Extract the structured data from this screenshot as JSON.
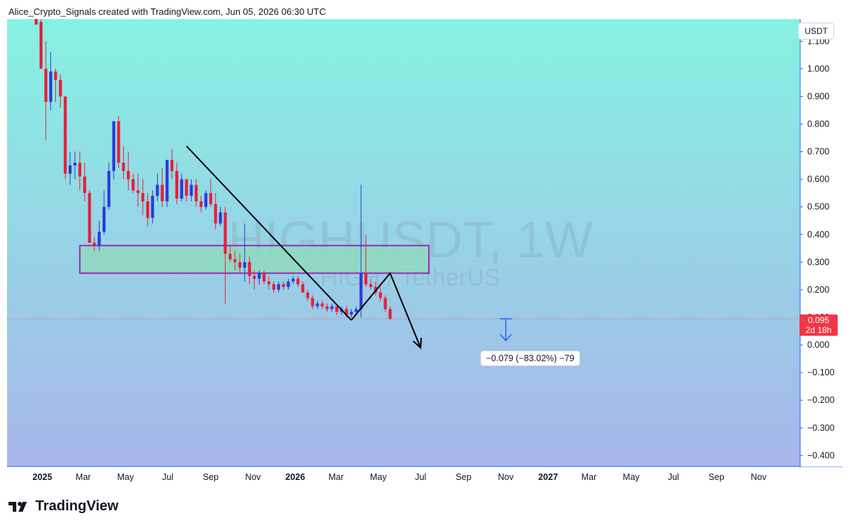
{
  "header": {
    "caption": "Alice_Crypto_Signals created with TradingView.com, Jun 05, 2026 06:30 UTC"
  },
  "footer": {
    "brand": "TradingView",
    "logo_icon": "tradingview-logo-icon"
  },
  "chart_data": {
    "type": "candlestick",
    "watermark": {
      "symbol": "HIGHUSDT, 1W",
      "name": "HIGH / TetherUS"
    },
    "unit": "USDT",
    "ylim": [
      -0.44,
      1.18
    ],
    "yticks": [
      "1.100",
      "1.000",
      "0.900",
      "0.800",
      "0.700",
      "0.600",
      "0.500",
      "0.400",
      "0.300",
      "0.200",
      "0.100",
      "0.000",
      "−0.100",
      "−0.200",
      "−0.300",
      "−0.400"
    ],
    "ytick_values": [
      1.1,
      1.0,
      0.9,
      0.8,
      0.7,
      0.6,
      0.5,
      0.4,
      0.3,
      0.2,
      0.1,
      0.0,
      -0.1,
      -0.2,
      -0.3,
      -0.4
    ],
    "x_range_days": [
      "2024-11-11",
      "2027-12-31"
    ],
    "xticks": [
      {
        "label": "2025",
        "date": "2025-01-01",
        "bold": true
      },
      {
        "label": "Mar",
        "date": "2025-03-01"
      },
      {
        "label": "May",
        "date": "2025-05-01"
      },
      {
        "label": "Jul",
        "date": "2025-07-01"
      },
      {
        "label": "Sep",
        "date": "2025-09-01"
      },
      {
        "label": "Nov",
        "date": "2025-11-01"
      },
      {
        "label": "2026",
        "date": "2026-01-01",
        "bold": true
      },
      {
        "label": "Mar",
        "date": "2026-03-01"
      },
      {
        "label": "May",
        "date": "2026-05-01"
      },
      {
        "label": "Jul",
        "date": "2026-07-01"
      },
      {
        "label": "Sep",
        "date": "2026-09-01"
      },
      {
        "label": "Nov",
        "date": "2026-11-01"
      },
      {
        "label": "2027",
        "date": "2027-01-01",
        "bold": true
      },
      {
        "label": "Mar",
        "date": "2027-03-01"
      },
      {
        "label": "May",
        "date": "2027-05-01"
      },
      {
        "label": "Jul",
        "date": "2027-07-01"
      },
      {
        "label": "Sep",
        "date": "2027-09-01"
      },
      {
        "label": "Nov",
        "date": "2027-11-01"
      }
    ],
    "candles_start": "2024-12-23",
    "candle_interval_days": 7,
    "candles_ohlc": [
      [
        1.18,
        1.18,
        1.17,
        1.16
      ],
      [
        1.17,
        1.19,
        1.0,
        1.0
      ],
      [
        1.0,
        1.1,
        0.74,
        0.88
      ],
      [
        0.88,
        1.06,
        0.85,
        0.99
      ],
      [
        0.99,
        1.0,
        0.88,
        0.96
      ],
      [
        0.96,
        0.98,
        0.86,
        0.9
      ],
      [
        0.9,
        0.9,
        0.6,
        0.62
      ],
      [
        0.62,
        0.7,
        0.58,
        0.65
      ],
      [
        0.65,
        0.7,
        0.6,
        0.66
      ],
      [
        0.66,
        0.7,
        0.56,
        0.61
      ],
      [
        0.61,
        0.66,
        0.52,
        0.55
      ],
      [
        0.55,
        0.56,
        0.37,
        0.37
      ],
      [
        0.37,
        0.39,
        0.34,
        0.36
      ],
      [
        0.36,
        0.45,
        0.34,
        0.41
      ],
      [
        0.41,
        0.56,
        0.4,
        0.5
      ],
      [
        0.5,
        0.66,
        0.49,
        0.63
      ],
      [
        0.63,
        0.8,
        0.6,
        0.81
      ],
      [
        0.81,
        0.83,
        0.64,
        0.66
      ],
      [
        0.66,
        0.72,
        0.6,
        0.63
      ],
      [
        0.63,
        0.7,
        0.56,
        0.6
      ],
      [
        0.6,
        0.62,
        0.55,
        0.56
      ],
      [
        0.56,
        0.62,
        0.5,
        0.55
      ],
      [
        0.55,
        0.6,
        0.47,
        0.52
      ],
      [
        0.52,
        0.55,
        0.43,
        0.46
      ],
      [
        0.46,
        0.56,
        0.44,
        0.54
      ],
      [
        0.54,
        0.62,
        0.52,
        0.58
      ],
      [
        0.58,
        0.64,
        0.5,
        0.52
      ],
      [
        0.52,
        0.67,
        0.5,
        0.67
      ],
      [
        0.67,
        0.71,
        0.6,
        0.63
      ],
      [
        0.63,
        0.66,
        0.51,
        0.53
      ],
      [
        0.53,
        0.62,
        0.52,
        0.6
      ],
      [
        0.6,
        0.6,
        0.52,
        0.54
      ],
      [
        0.54,
        0.6,
        0.52,
        0.58
      ],
      [
        0.58,
        0.6,
        0.5,
        0.52
      ],
      [
        0.52,
        0.54,
        0.48,
        0.5
      ],
      [
        0.5,
        0.56,
        0.49,
        0.55
      ],
      [
        0.55,
        0.6,
        0.5,
        0.51
      ],
      [
        0.51,
        0.55,
        0.42,
        0.44
      ],
      [
        0.44,
        0.5,
        0.43,
        0.48
      ],
      [
        0.48,
        0.5,
        0.15,
        0.33
      ],
      [
        0.33,
        0.36,
        0.3,
        0.31
      ],
      [
        0.31,
        0.34,
        0.27,
        0.3
      ],
      [
        0.3,
        0.33,
        0.26,
        0.28
      ],
      [
        0.28,
        0.44,
        0.23,
        0.3
      ],
      [
        0.3,
        0.32,
        0.22,
        0.25
      ],
      [
        0.25,
        0.27,
        0.2,
        0.24
      ],
      [
        0.24,
        0.27,
        0.22,
        0.26
      ],
      [
        0.26,
        0.27,
        0.22,
        0.23
      ],
      [
        0.23,
        0.25,
        0.2,
        0.22
      ],
      [
        0.22,
        0.23,
        0.19,
        0.2
      ],
      [
        0.2,
        0.23,
        0.19,
        0.22
      ],
      [
        0.22,
        0.23,
        0.2,
        0.21
      ],
      [
        0.21,
        0.24,
        0.2,
        0.23
      ],
      [
        0.23,
        0.25,
        0.22,
        0.24
      ],
      [
        0.24,
        0.25,
        0.21,
        0.22
      ],
      [
        0.22,
        0.23,
        0.19,
        0.19
      ],
      [
        0.19,
        0.2,
        0.16,
        0.17
      ],
      [
        0.17,
        0.18,
        0.13,
        0.14
      ],
      [
        0.14,
        0.16,
        0.13,
        0.15
      ],
      [
        0.15,
        0.16,
        0.13,
        0.14
      ],
      [
        0.14,
        0.15,
        0.12,
        0.13
      ],
      [
        0.13,
        0.15,
        0.12,
        0.14
      ],
      [
        0.14,
        0.14,
        0.11,
        0.12
      ],
      [
        0.12,
        0.14,
        0.11,
        0.13
      ],
      [
        0.13,
        0.14,
        0.1,
        0.11
      ],
      [
        0.11,
        0.13,
        0.1,
        0.12
      ],
      [
        0.12,
        0.14,
        0.11,
        0.13
      ],
      [
        0.13,
        0.58,
        0.1,
        0.26
      ],
      [
        0.26,
        0.4,
        0.21,
        0.22
      ],
      [
        0.22,
        0.24,
        0.2,
        0.21
      ],
      [
        0.21,
        0.23,
        0.18,
        0.19
      ],
      [
        0.19,
        0.21,
        0.16,
        0.17
      ],
      [
        0.17,
        0.18,
        0.12,
        0.13
      ],
      [
        0.13,
        0.14,
        0.09,
        0.095
      ]
    ],
    "support_zone": {
      "y_range": [
        0.26,
        0.36
      ],
      "date_range": [
        "2025-02-24",
        "2026-07-13"
      ]
    },
    "trend_line": [
      [
        "2025-07-28",
        0.72
      ],
      [
        "2026-03-23",
        0.09
      ]
    ],
    "projection_path": [
      [
        "2026-03-23",
        0.09
      ],
      [
        "2026-05-18",
        0.26
      ],
      [
        "2026-07-01",
        -0.01
      ]
    ],
    "measurement": {
      "label": "−0.079 (−83.02%) −79",
      "date": "2026-11-01",
      "y_from": 0.095,
      "y_to": 0.016
    },
    "last_price": {
      "value": 0.095,
      "label": "0.095",
      "countdown": "2d 18h"
    },
    "colors": {
      "up": "#2c3bd9",
      "down": "#e8203a",
      "zone_fill": "#8fd9c0",
      "zone_border": "#9c27b0",
      "trend": "#000000",
      "measure": "#2962ff",
      "price_line": "#f23645",
      "bg_top": "#86f2e2",
      "bg_bottom": "#a8b5ea",
      "axis": "#2962ff"
    }
  }
}
